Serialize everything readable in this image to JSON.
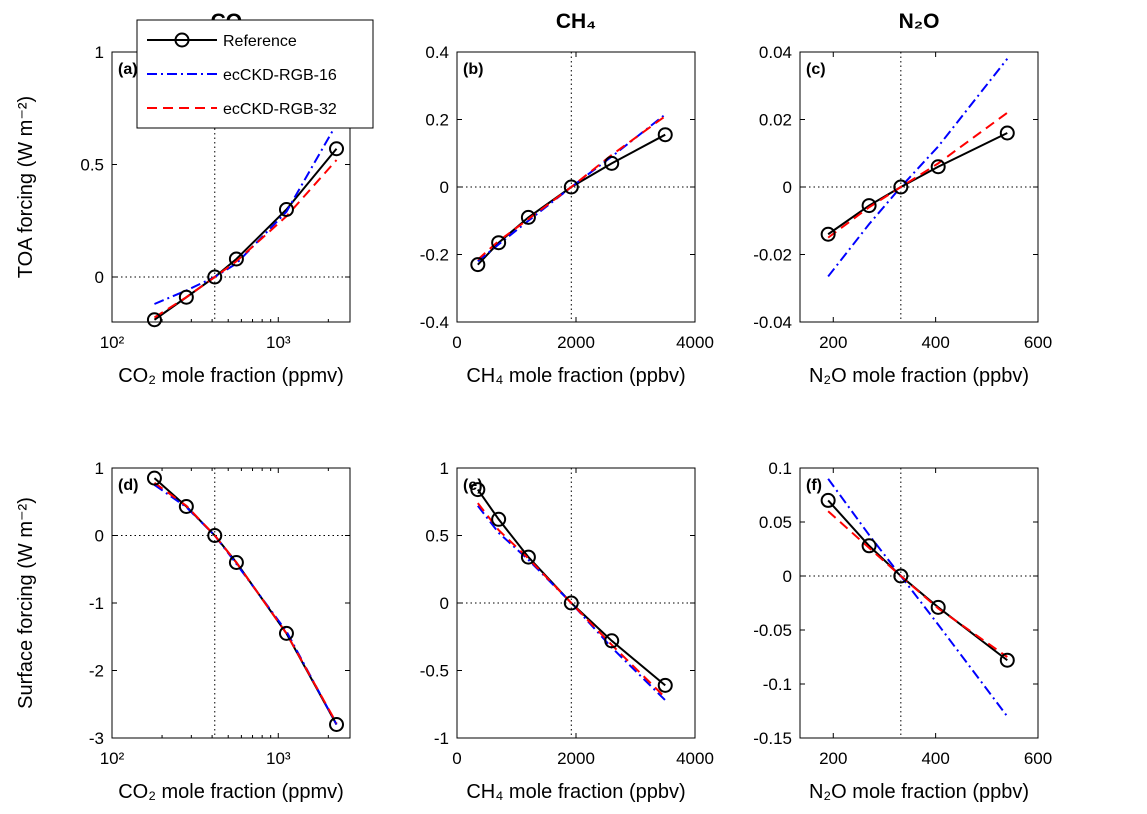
{
  "chart_data": [
    {
      "type": "line",
      "title": "CO₂",
      "panel_label": "(a)",
      "xlabel": "CO₂ mole fraction (ppmv)",
      "ylabel": "TOA forcing (W m⁻²)",
      "xscale": "log",
      "x": [
        180,
        280,
        415,
        560,
        1120,
        2240
      ],
      "xlim": [
        100,
        2700
      ],
      "xticks": [
        {
          "value": 100,
          "label": "10²"
        },
        {
          "value": 1000,
          "label": "10³"
        }
      ],
      "ylim": [
        -0.2,
        1
      ],
      "yticks": [
        0,
        0.5,
        1
      ],
      "vline": 415,
      "hline": 0,
      "legend": "upper left",
      "series": [
        {
          "name": "Reference",
          "color": "#000000",
          "dash": "solid",
          "marker": "circle",
          "values": [
            -0.19,
            -0.09,
            0,
            0.08,
            0.3,
            0.57
          ]
        },
        {
          "name": "ecCKD-RGB-16",
          "color": "#0000ff",
          "dash": "dashdot",
          "values": [
            -0.12,
            -0.06,
            0,
            0.06,
            0.29,
            0.68
          ]
        },
        {
          "name": "ecCKD-RGB-32",
          "color": "#ff0000",
          "dash": "dashed",
          "values": [
            -0.18,
            -0.09,
            0,
            0.07,
            0.27,
            0.52
          ]
        }
      ]
    },
    {
      "type": "line",
      "title": "CH₄",
      "panel_label": "(b)",
      "xlabel": "CH₄ mole fraction (ppbv)",
      "xscale": "linear",
      "x": [
        350,
        700,
        1200,
        1921,
        2600,
        3500
      ],
      "xlim": [
        0,
        4000
      ],
      "xticks": [
        0,
        2000,
        4000
      ],
      "ylim": [
        -0.4,
        0.4
      ],
      "yticks": [
        -0.4,
        -0.2,
        0,
        0.2,
        0.4
      ],
      "vline": 1921,
      "hline": 0,
      "series": [
        {
          "color": "#000000",
          "dash": "solid",
          "marker": "circle",
          "values": [
            -0.23,
            -0.165,
            -0.09,
            0,
            0.07,
            0.155
          ]
        },
        {
          "color": "#0000ff",
          "dash": "dashdot",
          "values": [
            -0.22,
            -0.17,
            -0.1,
            0,
            0.09,
            0.215
          ]
        },
        {
          "color": "#ff0000",
          "dash": "dashed",
          "values": [
            -0.215,
            -0.16,
            -0.095,
            0,
            0.095,
            0.21
          ]
        }
      ]
    },
    {
      "type": "line",
      "title": "N₂O",
      "panel_label": "(c)",
      "xlabel": "N₂O mole fraction (ppbv)",
      "xscale": "linear",
      "x": [
        190,
        270,
        332,
        405,
        540
      ],
      "xlim": [
        135,
        600
      ],
      "xticks": [
        200,
        400,
        600
      ],
      "ylim": [
        -0.04,
        0.04
      ],
      "yticks": [
        -0.04,
        -0.02,
        0,
        0.02,
        0.04
      ],
      "vline": 332,
      "hline": 0,
      "series": [
        {
          "color": "#000000",
          "dash": "solid",
          "marker": "circle",
          "values": [
            -0.014,
            -0.0055,
            0,
            0.006,
            0.016
          ]
        },
        {
          "color": "#0000ff",
          "dash": "dashdot",
          "values": [
            -0.0265,
            -0.011,
            0,
            0.012,
            0.038
          ]
        },
        {
          "color": "#ff0000",
          "dash": "dashed",
          "values": [
            -0.015,
            -0.006,
            0,
            0.007,
            0.022
          ]
        }
      ]
    },
    {
      "type": "line",
      "panel_label": "(d)",
      "xlabel": "CO₂ mole fraction (ppmv)",
      "ylabel": "Surface forcing (W m⁻²)",
      "xscale": "log",
      "x": [
        180,
        280,
        415,
        560,
        1120,
        2240
      ],
      "xlim": [
        100,
        2700
      ],
      "xticks": [
        {
          "value": 100,
          "label": "10²"
        },
        {
          "value": 1000,
          "label": "10³"
        }
      ],
      "ylim": [
        -3,
        1
      ],
      "yticks": [
        -3,
        -2,
        -1,
        0,
        1
      ],
      "vline": 415,
      "hline": 0,
      "series": [
        {
          "color": "#000000",
          "dash": "solid",
          "marker": "circle",
          "values": [
            0.85,
            0.43,
            0,
            -0.4,
            -1.45,
            -2.8
          ]
        },
        {
          "color": "#0000ff",
          "dash": "dashdot",
          "values": [
            0.75,
            0.42,
            0,
            -0.42,
            -1.42,
            -2.8
          ]
        },
        {
          "color": "#ff0000",
          "dash": "dashed",
          "values": [
            0.78,
            0.44,
            0,
            -0.4,
            -1.45,
            -2.78
          ]
        }
      ]
    },
    {
      "type": "line",
      "panel_label": "(e)",
      "xlabel": "CH₄ mole fraction (ppbv)",
      "xscale": "linear",
      "x": [
        350,
        700,
        1200,
        1921,
        2600,
        3500
      ],
      "xlim": [
        0,
        4000
      ],
      "xticks": [
        0,
        2000,
        4000
      ],
      "ylim": [
        -1,
        1
      ],
      "yticks": [
        -1,
        -0.5,
        0,
        0.5,
        1
      ],
      "vline": 1921,
      "hline": 0,
      "series": [
        {
          "color": "#000000",
          "dash": "solid",
          "marker": "circle",
          "values": [
            0.84,
            0.62,
            0.34,
            0,
            -0.28,
            -0.61
          ]
        },
        {
          "color": "#0000ff",
          "dash": "dashdot",
          "values": [
            0.72,
            0.52,
            0.32,
            0,
            -0.33,
            -0.72
          ]
        },
        {
          "color": "#ff0000",
          "dash": "dashed",
          "values": [
            0.74,
            0.54,
            0.33,
            0,
            -0.31,
            -0.7
          ]
        }
      ]
    },
    {
      "type": "line",
      "panel_label": "(f)",
      "xlabel": "N₂O mole fraction (ppbv)",
      "xscale": "linear",
      "x": [
        190,
        270,
        332,
        405,
        540
      ],
      "xlim": [
        135,
        600
      ],
      "xticks": [
        200,
        400,
        600
      ],
      "ylim": [
        -0.15,
        0.1
      ],
      "yticks": [
        -0.15,
        -0.1,
        -0.05,
        0,
        0.05,
        0.1
      ],
      "vline": 332,
      "hline": 0,
      "series": [
        {
          "color": "#000000",
          "dash": "solid",
          "marker": "circle",
          "values": [
            0.07,
            0.028,
            0,
            -0.029,
            -0.078
          ]
        },
        {
          "color": "#0000ff",
          "dash": "dashdot",
          "values": [
            0.09,
            0.038,
            0,
            -0.045,
            -0.13
          ]
        },
        {
          "color": "#ff0000",
          "dash": "dashed",
          "values": [
            0.06,
            0.026,
            0,
            -0.03,
            -0.075
          ]
        }
      ]
    }
  ]
}
